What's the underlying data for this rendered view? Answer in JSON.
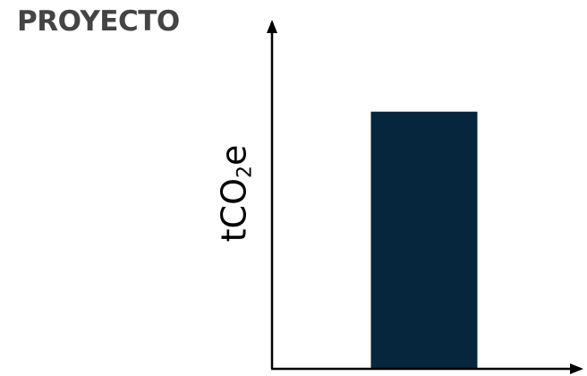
{
  "chart_data": {
    "type": "bar",
    "title": "PROYECTO",
    "ylabel_main": "tCO",
    "ylabel_sub": "2",
    "ylabel_tail": "e",
    "xlabel": "",
    "categories": [
      ""
    ],
    "values": [
      0.76
    ],
    "ylim": [
      0,
      1
    ],
    "grid": false,
    "legend": "none",
    "bar_color": "#06263d",
    "axis_color": "#000000"
  }
}
